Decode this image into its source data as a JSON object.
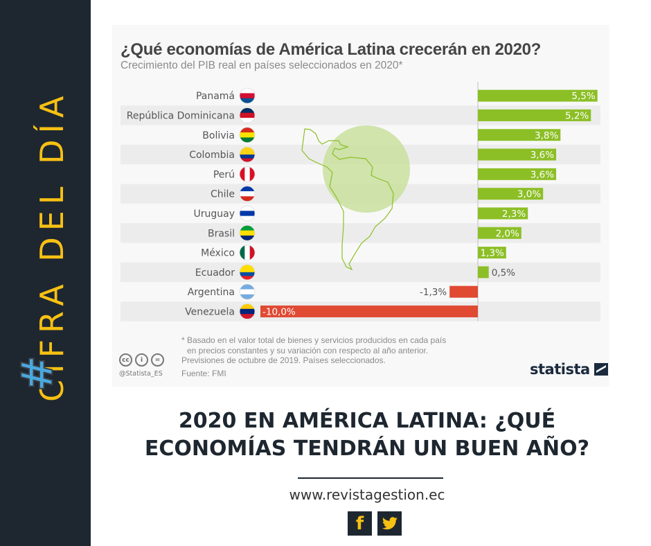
{
  "sidebar": {
    "hashtag_symbol": "#",
    "hashtag_text": "CIFRA DEL DÍA"
  },
  "chart_data": {
    "type": "bar",
    "orientation": "horizontal",
    "title": "¿Qué economías de América Latina crecerán en 2020?",
    "subtitle": "Crecimiento del PIB real en países seleccionados en 2020*",
    "categories": [
      "Panamá",
      "República Dominicana",
      "Bolivia",
      "Colombia",
      "Perú",
      "Chile",
      "Uruguay",
      "Brasil",
      "México",
      "Ecuador",
      "Argentina",
      "Venezuela"
    ],
    "values": [
      5.5,
      5.2,
      3.8,
      3.6,
      3.6,
      3.0,
      2.3,
      2.0,
      1.3,
      0.5,
      -1.3,
      -10.0
    ],
    "value_labels": [
      "5,5%",
      "5,2%",
      "3,8%",
      "3,6%",
      "3,6%",
      "3,0%",
      "2,3%",
      "2,0%",
      "1,3%",
      "0,5%",
      "-1,3%",
      "-10,0%"
    ],
    "unit": "%",
    "xlim": [
      -10,
      5.5
    ],
    "xlabel": "",
    "ylabel": "",
    "grid": false,
    "colors": {
      "positive": "#8cbf26",
      "negative": "#e04a33",
      "row_stripe": "#ececec"
    },
    "flags": [
      {
        "country": "Panamá",
        "icon": "flag-panama-icon"
      },
      {
        "country": "República Dominicana",
        "icon": "flag-dominican-republic-icon"
      },
      {
        "country": "Bolivia",
        "icon": "flag-bolivia-icon"
      },
      {
        "country": "Colombia",
        "icon": "flag-colombia-icon"
      },
      {
        "country": "Perú",
        "icon": "flag-peru-icon"
      },
      {
        "country": "Chile",
        "icon": "flag-chile-icon"
      },
      {
        "country": "Uruguay",
        "icon": "flag-uruguay-icon"
      },
      {
        "country": "Brasil",
        "icon": "flag-brazil-icon"
      },
      {
        "country": "México",
        "icon": "flag-mexico-icon"
      },
      {
        "country": "Ecuador",
        "icon": "flag-ecuador-icon"
      },
      {
        "country": "Argentina",
        "icon": "flag-argentina-icon"
      },
      {
        "country": "Venezuela",
        "icon": "flag-venezuela-icon"
      }
    ]
  },
  "card": {
    "footnote_line1": "* Basado en el valor total de bienes y servicios producidos en cada país",
    "footnote_line2": "en precios constantes y su variación con respecto al año anterior.",
    "footnote_line3": "Previsiones de octubre de 2019. Países seleccionados.",
    "source": "Fuente: FMI",
    "handle": "@Statista_ES",
    "cc_icons": [
      "cc",
      "i",
      "="
    ],
    "brand": "statista"
  },
  "headline": {
    "line1": "2020 EN AMÉRICA LATINA: ¿QUÉ",
    "line2": "ECONOMÍAS TENDRÁN UN BUEN AÑO?"
  },
  "website": "www.revistagestion.ec",
  "social": {
    "facebook": "f",
    "twitter": "🐦"
  }
}
